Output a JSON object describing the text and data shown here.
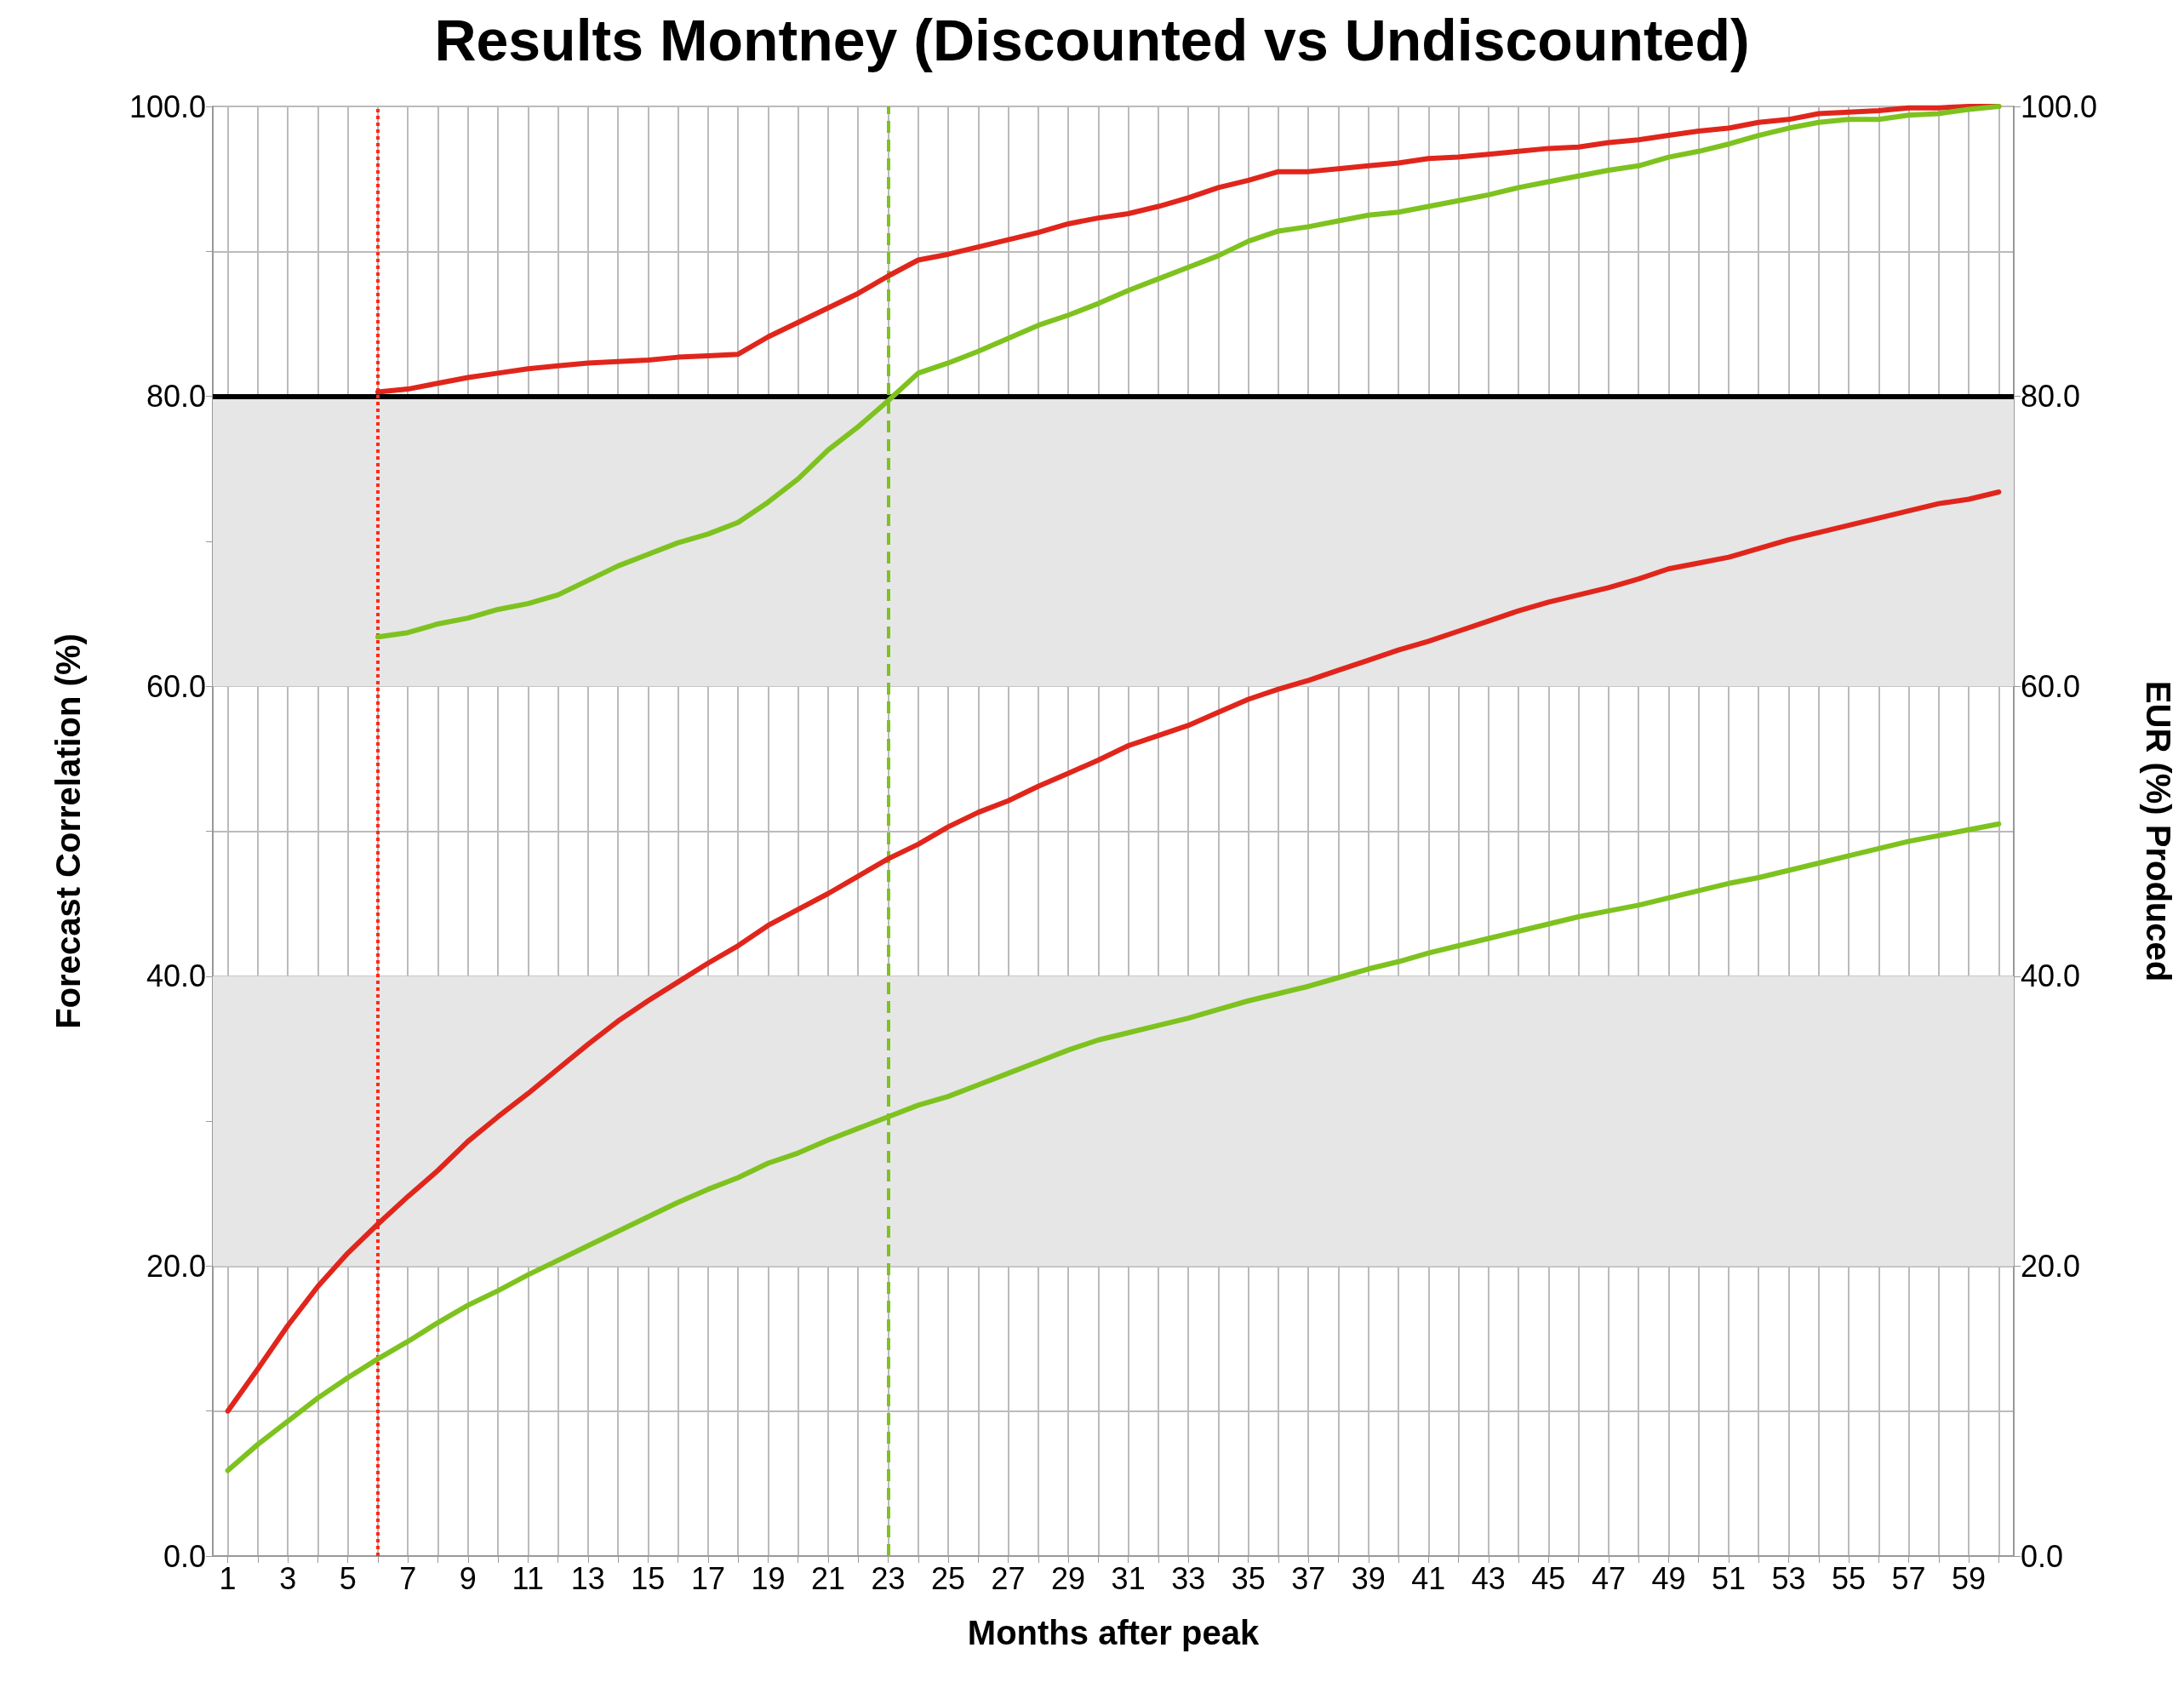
{
  "chart_data": {
    "type": "line",
    "title": "Results Montney (Discounted vs Undiscounted)",
    "xlabel": "Months after peak",
    "ylabel": "Forecast Correlation (%)",
    "y2label": "EUR (%) Produced",
    "x": [
      1,
      2,
      3,
      4,
      5,
      6,
      7,
      8,
      9,
      10,
      11,
      12,
      13,
      14,
      15,
      16,
      17,
      18,
      19,
      20,
      21,
      22,
      23,
      24,
      25,
      26,
      27,
      28,
      29,
      30,
      31,
      32,
      33,
      34,
      35,
      36,
      37,
      38,
      39,
      40,
      41,
      42,
      43,
      44,
      45,
      46,
      47,
      48,
      49,
      50,
      51,
      52,
      53,
      54,
      55,
      56,
      57,
      58,
      59,
      60
    ],
    "series": [
      {
        "color": "#e0261c",
        "x": [
          6,
          7,
          8,
          9,
          10,
          11,
          12,
          13,
          14,
          15,
          16,
          17,
          18,
          19,
          20,
          21,
          22,
          23,
          24,
          25,
          26,
          27,
          28,
          29,
          30,
          31,
          32,
          33,
          34,
          35,
          36,
          37,
          38,
          39,
          40,
          41,
          42,
          43,
          44,
          45,
          46,
          47,
          48,
          49,
          50,
          51,
          52,
          53,
          54,
          55,
          56,
          57,
          58,
          59,
          60
        ],
        "values": [
          80.3,
          80.5,
          80.9,
          81.3,
          81.6,
          81.9,
          82.1,
          82.3,
          82.4,
          82.5,
          82.7,
          82.8,
          82.9,
          84.1,
          85.1,
          86.1,
          87.1,
          88.3,
          89.4,
          89.8,
          90.3,
          90.8,
          91.3,
          91.9,
          92.3,
          92.6,
          93.1,
          93.7,
          94.4,
          94.9,
          95.5,
          95.5,
          95.7,
          95.9,
          96.1,
          96.4,
          96.5,
          96.7,
          96.9,
          97.1,
          97.2,
          97.5,
          97.7,
          98.0,
          98.3,
          98.5,
          98.9,
          99.1,
          99.5,
          99.6,
          99.7,
          99.9,
          99.9,
          100.0,
          100.0
        ]
      },
      {
        "color": "#7ec21f",
        "x": [
          6,
          7,
          8,
          9,
          10,
          11,
          12,
          13,
          14,
          15,
          16,
          17,
          18,
          19,
          20,
          21,
          22,
          23,
          24,
          25,
          26,
          27,
          28,
          29,
          30,
          31,
          32,
          33,
          34,
          35,
          36,
          37,
          38,
          39,
          40,
          41,
          42,
          43,
          44,
          45,
          46,
          47,
          48,
          49,
          50,
          51,
          52,
          53,
          54,
          55,
          56,
          57,
          58,
          59,
          60
        ],
        "values": [
          63.4,
          63.7,
          64.3,
          64.7,
          65.3,
          65.7,
          66.3,
          67.3,
          68.3,
          69.1,
          69.9,
          70.5,
          71.3,
          72.7,
          74.3,
          76.3,
          77.9,
          79.7,
          81.6,
          82.3,
          83.1,
          84.0,
          84.9,
          85.6,
          86.4,
          87.3,
          88.1,
          88.9,
          89.7,
          90.7,
          91.4,
          91.7,
          92.1,
          92.5,
          92.7,
          93.1,
          93.5,
          93.9,
          94.4,
          94.8,
          95.2,
          95.6,
          95.9,
          96.5,
          96.9,
          97.4,
          98.0,
          98.5,
          98.9,
          99.1,
          99.1,
          99.4,
          99.5,
          99.8,
          100.0
        ]
      },
      {
        "color": "#e0261c",
        "values": [
          10.0,
          12.9,
          15.9,
          18.6,
          20.9,
          22.9,
          24.8,
          26.6,
          28.6,
          30.3,
          31.9,
          33.6,
          35.3,
          36.9,
          38.3,
          39.6,
          40.9,
          42.1,
          43.5,
          44.6,
          45.7,
          46.9,
          48.1,
          49.1,
          50.3,
          51.3,
          52.1,
          53.1,
          54.0,
          54.9,
          55.9,
          56.6,
          57.3,
          58.2,
          59.1,
          59.8,
          60.4,
          61.1,
          61.8,
          62.5,
          63.1,
          63.8,
          64.5,
          65.2,
          65.8,
          66.3,
          66.8,
          67.4,
          68.1,
          68.5,
          68.9,
          69.5,
          70.1,
          70.6,
          71.1,
          71.6,
          72.1,
          72.6,
          72.9,
          73.4
        ]
      },
      {
        "color": "#7ec21f",
        "values": [
          5.9,
          7.7,
          9.3,
          10.9,
          12.3,
          13.6,
          14.8,
          16.1,
          17.3,
          18.3,
          19.4,
          20.4,
          21.4,
          22.4,
          23.4,
          24.4,
          25.3,
          26.1,
          27.1,
          27.8,
          28.7,
          29.5,
          30.3,
          31.1,
          31.7,
          32.5,
          33.3,
          34.1,
          34.9,
          35.6,
          36.1,
          36.6,
          37.1,
          37.7,
          38.3,
          38.8,
          39.3,
          39.9,
          40.5,
          41.0,
          41.6,
          42.1,
          42.6,
          43.1,
          43.6,
          44.1,
          44.5,
          44.9,
          45.4,
          45.9,
          46.4,
          46.8,
          47.3,
          47.8,
          48.3,
          48.8,
          49.3,
          49.7,
          50.1,
          50.5
        ]
      }
    ],
    "xlim": [
      0.5,
      60.5
    ],
    "xticks": [
      1,
      {
        "value": 2,
        "label": null
      },
      3,
      {
        "value": 4,
        "label": null
      },
      5,
      {
        "value": 6,
        "label": null
      },
      7,
      {
        "value": 8,
        "label": null
      },
      9,
      {
        "value": 10,
        "label": null
      },
      11,
      {
        "value": 12,
        "label": null
      },
      13,
      {
        "value": 14,
        "label": null
      },
      15,
      {
        "value": 16,
        "label": null
      },
      17,
      {
        "value": 18,
        "label": null
      },
      19,
      {
        "value": 20,
        "label": null
      },
      21,
      {
        "value": 22,
        "label": null
      },
      23,
      {
        "value": 24,
        "label": null
      },
      25,
      {
        "value": 26,
        "label": null
      },
      27,
      {
        "value": 28,
        "label": null
      },
      29,
      {
        "value": 30,
        "label": null
      },
      31,
      {
        "value": 32,
        "label": null
      },
      33,
      {
        "value": 34,
        "label": null
      },
      35,
      {
        "value": 36,
        "label": null
      },
      37,
      {
        "value": 38,
        "label": null
      },
      39,
      {
        "value": 40,
        "label": null
      },
      41,
      {
        "value": 42,
        "label": null
      },
      43,
      {
        "value": 44,
        "label": null
      },
      45,
      {
        "value": 46,
        "label": null
      },
      47,
      {
        "value": 48,
        "label": null
      },
      49,
      {
        "value": 50,
        "label": null
      },
      51,
      {
        "value": 52,
        "label": null
      },
      53,
      {
        "value": 54,
        "label": null
      },
      55,
      {
        "value": 56,
        "label": null
      },
      57,
      {
        "value": 58,
        "label": null
      },
      59,
      {
        "value": 60,
        "label": null
      }
    ],
    "ylim": [
      0,
      100
    ],
    "yticks": [
      {
        "value": 0,
        "label": "0.0"
      },
      {
        "value": 10,
        "label": null
      },
      {
        "value": 20,
        "label": "20.0"
      },
      {
        "value": 30,
        "label": null
      },
      {
        "value": 40,
        "label": "40.0"
      },
      {
        "value": 50,
        "label": null
      },
      {
        "value": 60,
        "label": "60.0"
      },
      {
        "value": 70,
        "label": null
      },
      {
        "value": 80,
        "label": "80.0"
      },
      {
        "value": 90,
        "label": null
      },
      {
        "value": 100,
        "label": "100.0"
      }
    ],
    "y2lim": [
      0,
      100
    ],
    "y2ticks": [
      {
        "value": 0,
        "label": "0.0"
      },
      {
        "value": 20,
        "label": "20.0"
      },
      {
        "value": 40,
        "label": "40.0"
      },
      {
        "value": 60,
        "label": "60.0"
      },
      {
        "value": 80,
        "label": "80.0"
      },
      {
        "value": 100,
        "label": "100.0"
      }
    ],
    "bands": [
      {
        "axis": "y",
        "from": 20,
        "to": 40,
        "color": "#e6e6e6"
      },
      {
        "axis": "y",
        "from": 60,
        "to": 80,
        "color": "#e6e6e6"
      }
    ],
    "ref_lines": [
      {
        "axis": "y",
        "value": 80,
        "color": "#000000",
        "line_style": "solid"
      },
      {
        "axis": "x",
        "value": 6,
        "color": "#ff2a1a",
        "line_style": "dotted"
      },
      {
        "axis": "x",
        "value": 23,
        "color": "#7ec21f",
        "line_style": "dashed"
      }
    ],
    "grid": true,
    "marker": "none",
    "line_style": "solid"
  }
}
